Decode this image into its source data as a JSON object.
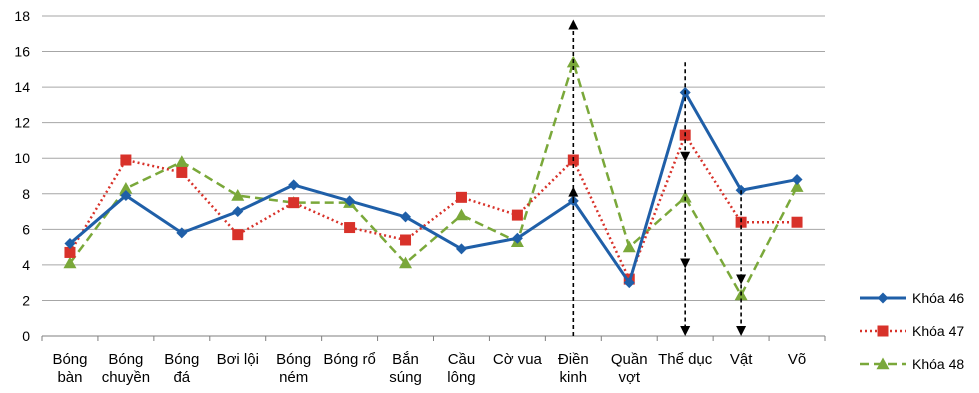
{
  "chart_data": {
    "type": "line",
    "categories": [
      [
        "Bóng",
        "bàn"
      ],
      [
        "Bóng",
        "chuyền"
      ],
      [
        "Bóng",
        "đá"
      ],
      [
        "Bơi lội"
      ],
      [
        "Bóng",
        "ném"
      ],
      [
        "Bóng rổ"
      ],
      [
        "Bắn",
        "súng"
      ],
      [
        "Cầu",
        "lông"
      ],
      [
        "Cờ vua"
      ],
      [
        "Điền",
        "kinh"
      ],
      [
        "Quần",
        "vợt"
      ],
      [
        "Thể dục"
      ],
      [
        "Vật"
      ],
      [
        "Võ"
      ]
    ],
    "series": [
      {
        "name": "Khóa 46",
        "color": "#1f5fa8",
        "line_style": "solid",
        "marker": "diamond",
        "values": [
          5.2,
          7.9,
          5.8,
          7.0,
          8.5,
          7.6,
          6.7,
          4.9,
          5.5,
          7.6,
          3.0,
          13.7,
          8.2,
          8.8
        ]
      },
      {
        "name": "Khóa 47",
        "color": "#d8322a",
        "line_style": "dotted",
        "marker": "square",
        "values": [
          4.7,
          9.9,
          9.2,
          5.7,
          7.5,
          6.1,
          5.4,
          7.8,
          6.8,
          9.9,
          3.2,
          11.3,
          6.4,
          6.4
        ]
      },
      {
        "name": "Khóa 48",
        "color": "#7aa83a",
        "line_style": "dashed",
        "marker": "triangle",
        "values": [
          4.1,
          8.3,
          9.8,
          7.9,
          7.5,
          7.5,
          4.1,
          6.8,
          5.3,
          15.4,
          5.0,
          7.8,
          2.3,
          8.4
        ]
      }
    ],
    "ylim": [
      0,
      18
    ],
    "yticks": [
      0,
      2,
      4,
      6,
      8,
      10,
      12,
      14,
      16,
      18
    ],
    "grid": true,
    "legend_position": "right",
    "annotations": [
      {
        "type": "arrow",
        "category_index": 9,
        "from": 0,
        "to": 17.8
      },
      {
        "type": "arrow",
        "category_index": 9,
        "from": 7.6,
        "to": 8.4
      },
      {
        "type": "arrow",
        "category_index": 11,
        "from": 15.4,
        "to": 9.8
      },
      {
        "type": "arrow",
        "category_index": 11,
        "from": 9.8,
        "to": 3.8
      },
      {
        "type": "arrow",
        "category_index": 11,
        "from": 3.8,
        "to": 0
      },
      {
        "type": "arrow",
        "category_index": 12,
        "from": 8.2,
        "to": 2.9
      },
      {
        "type": "arrow",
        "category_index": 12,
        "from": 2.9,
        "to": 0
      }
    ]
  }
}
